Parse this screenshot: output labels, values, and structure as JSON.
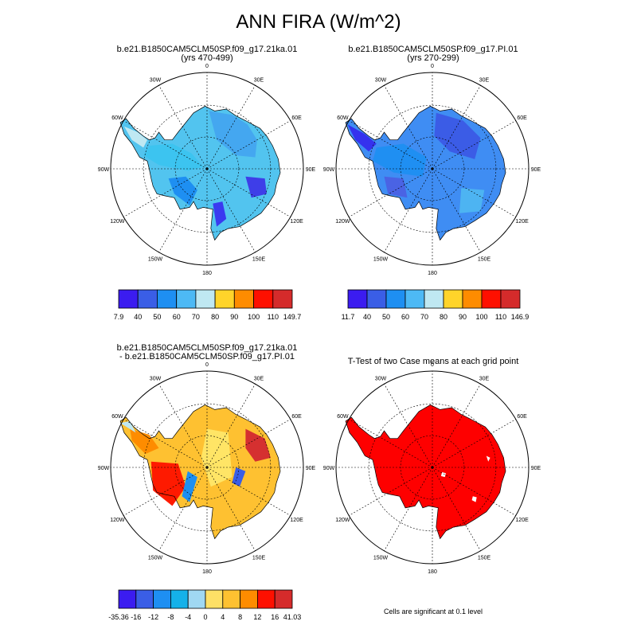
{
  "title": "ANN FIRA (W/m^2)",
  "colors": {
    "land_outline": "#000000",
    "polar_grid": "#000000"
  },
  "panels": [
    {
      "title_line1": "b.e21.B1850CAM5CLM50SP.f09_g17.21ka.01",
      "title_line2": "(yrs 470-499)",
      "base_color": "#52c4ef",
      "patch_colors": [
        "#44a7f0",
        "#3cc4f0",
        "#bfe8f2",
        "#1e8ff2",
        "#3a3af0",
        "#3e3ee8"
      ],
      "outline_style": "21ka",
      "colorbar": {
        "colors": [
          "#3b1cf0",
          "#3a5ee6",
          "#1e8ff2",
          "#4db9f5",
          "#bfe8f2",
          "#ffd42a",
          "#fe8c00",
          "#fe1000",
          "#d52b2b"
        ],
        "labels": [
          "7.9",
          "40",
          "50",
          "60",
          "70",
          "80",
          "90",
          "100",
          "110",
          "149.7"
        ]
      }
    },
    {
      "title_line1": "b.e21.B1850CAM5CLM50SP.f09_g17.PI.01",
      "title_line2": "(yrs 270-299)",
      "base_color": "#3f8df3",
      "patch_colors": [
        "#3b5ce6",
        "#1f8ff2",
        "#4a63e4",
        "#3532ee",
        "#4db4f2"
      ],
      "outline_style": "PI",
      "colorbar": {
        "colors": [
          "#3b1cf0",
          "#3a5ee6",
          "#1e8ff2",
          "#4db9f5",
          "#bfe8f2",
          "#ffd42a",
          "#fe8c00",
          "#fe1000",
          "#d52b2b"
        ],
        "labels": [
          "11.7",
          "40",
          "50",
          "60",
          "70",
          "80",
          "90",
          "100",
          "110",
          "146.9"
        ]
      }
    },
    {
      "title_line1": "b.e21.B1850CAM5CLM50SP.f09_g17.21ka.01",
      "title_line2": "- b.e21.B1850CAM5CLM50SP.f09_g17.PI.01",
      "base_color": "#fec131",
      "patch_colors": [
        "#fe1a00",
        "#d53030",
        "#fe8c00",
        "#ffe566",
        "#bfe8f2",
        "#1e8ff2",
        "#3a5ee6"
      ],
      "outline_style": "21ka",
      "colorbar": {
        "colors": [
          "#3b1cf0",
          "#3a5ee6",
          "#1e8ff2",
          "#15b1e9",
          "#a0d8f2",
          "#fee066",
          "#fec131",
          "#fe8c00",
          "#fe1000",
          "#d52b2b"
        ],
        "labels": [
          "-35.36",
          "-16",
          "-12",
          "-8",
          "-4",
          "0",
          "4",
          "8",
          "12",
          "16",
          "41.03"
        ]
      }
    },
    {
      "title_line1": "T-Test of two Case means at each grid point",
      "title_line2": "",
      "base_color": "#fe0000",
      "patch_colors": [
        "#ffffff"
      ],
      "outline_style": "21ka",
      "footnote": "Cells are significant at 0.1 level"
    }
  ],
  "lon_labels": [
    "0",
    "30E",
    "60E",
    "90E",
    "120E",
    "150E",
    "180",
    "150W",
    "120W",
    "90W",
    "60W",
    "30W"
  ],
  "chart_data": [
    {
      "type": "heatmap",
      "title": "b.e21.B1850CAM5CLM50SP.f09_g17.21ka.01 (yrs 470-499)",
      "variable": "ANN FIRA (W/m^2)",
      "levels": [
        7.9,
        40,
        50,
        60,
        70,
        80,
        90,
        100,
        110,
        149.7
      ],
      "projection": "south polar stereographic"
    },
    {
      "type": "heatmap",
      "title": "b.e21.B1850CAM5CLM50SP.f09_g17.PI.01 (yrs 270-299)",
      "variable": "ANN FIRA (W/m^2)",
      "levels": [
        11.7,
        40,
        50,
        60,
        70,
        80,
        90,
        100,
        110,
        146.9
      ],
      "projection": "south polar stereographic"
    },
    {
      "type": "heatmap",
      "title": "b.e21.B1850CAM5CLM50SP.f09_g17.21ka.01 - b.e21.B1850CAM5CLM50SP.f09_g17.PI.01",
      "variable": "ANN FIRA (W/m^2)",
      "levels": [
        -35.36,
        -16,
        -12,
        -8,
        -4,
        0,
        4,
        8,
        12,
        16,
        41.03
      ],
      "projection": "south polar stereographic"
    },
    {
      "type": "heatmap",
      "title": "T-Test of two Case means at each grid point",
      "note": "Cells are significant at 0.1 level",
      "projection": "south polar stereographic"
    }
  ]
}
